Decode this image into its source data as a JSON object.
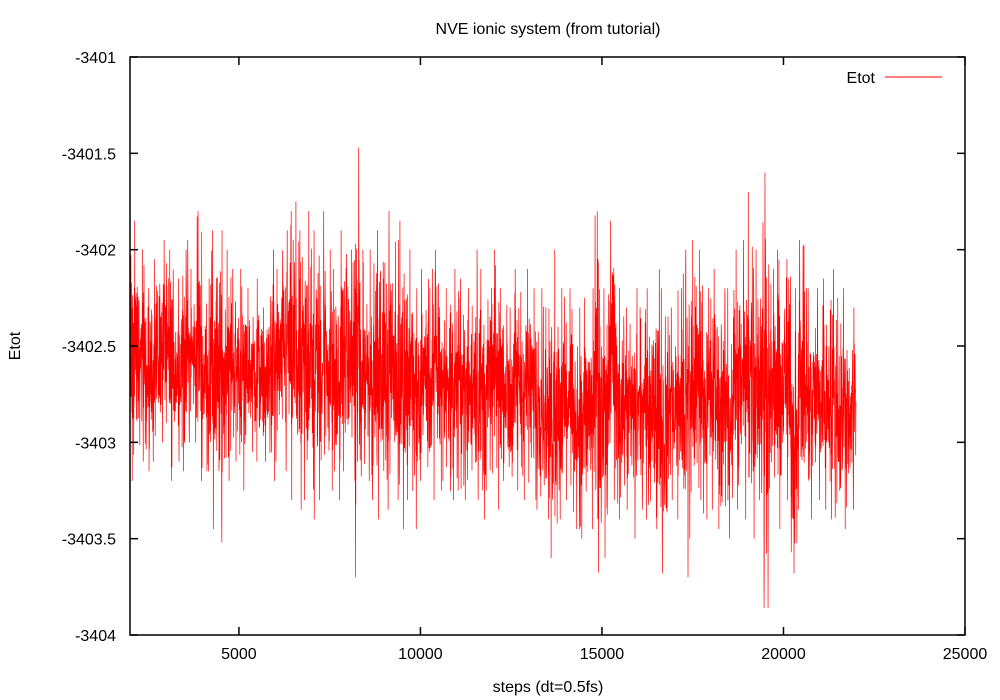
{
  "chart_data": {
    "type": "line",
    "title": "NVE ionic system (from tutorial)",
    "xlabel": "steps (dt=0.5fs)",
    "ylabel": "Etot",
    "xlim": [
      2000,
      25000
    ],
    "ylim": [
      -3404,
      -3401
    ],
    "xticks": [
      5000,
      10000,
      15000,
      20000,
      25000
    ],
    "xtick_labels": [
      "5000",
      "10000",
      "15000",
      "20000",
      "25000"
    ],
    "yticks": [
      -3401,
      -3401.5,
      -3402,
      -3402.5,
      -3403,
      -3403.5,
      -3404
    ],
    "ytick_labels": [
      "-3401",
      "-3401.5",
      "-3402",
      "-3402.5",
      "-3403",
      "-3403.5",
      "-3404"
    ],
    "legend": {
      "position": "top-right",
      "entries": [
        "Etot"
      ]
    },
    "grid": false,
    "series": [
      {
        "name": "Etot",
        "color": "#ff0000",
        "representation": "per-bin envelope (max/min) of dense noisy series",
        "bin_start": [
          2000,
          2200,
          2400,
          2600,
          2800,
          3000,
          3200,
          3400,
          3600,
          3800,
          4000,
          4200,
          4400,
          4600,
          4800,
          5000,
          5200,
          5400,
          5600,
          5800,
          6000,
          6200,
          6400,
          6600,
          6800,
          7000,
          7200,
          7400,
          7600,
          7800,
          8000,
          8200,
          8400,
          8600,
          8800,
          9000,
          9200,
          9400,
          9600,
          9800,
          10000,
          10200,
          10400,
          10600,
          10800,
          11000,
          11200,
          11400,
          11600,
          11800,
          12000,
          12200,
          12400,
          12600,
          12800,
          13000,
          13200,
          13400,
          13600,
          13800,
          14000,
          14200,
          14400,
          14600,
          14800,
          15000,
          15200,
          15400,
          15600,
          15800,
          16000,
          16200,
          16400,
          16600,
          16800,
          17000,
          17200,
          17400,
          17600,
          17800,
          18000,
          18200,
          18400,
          18600,
          18800,
          19000,
          19200,
          19400,
          19600,
          19800,
          20000,
          20200,
          20400,
          20600,
          20800,
          21000,
          21200,
          21400,
          21600,
          21800
        ],
        "bin_width": 200,
        "max": [
          -3401.85,
          -3402.0,
          -3402.2,
          -3402.05,
          -3401.95,
          -3402.0,
          -3402.15,
          -3401.95,
          -3402.1,
          -3401.8,
          -3402.15,
          -3401.9,
          -3401.9,
          -3402.0,
          -3402.1,
          -3402.1,
          -3402.2,
          -3402.15,
          -3402.3,
          -3402.0,
          -3402.1,
          -3401.9,
          -3401.75,
          -3401.9,
          -3401.8,
          -3401.9,
          -3401.8,
          -3402.0,
          -3402.1,
          -3401.9,
          -3402.0,
          -3401.47,
          -3402.0,
          -3402.0,
          -3401.9,
          -3401.8,
          -3401.95,
          -3401.85,
          -3402.0,
          -3402.2,
          -3402.1,
          -3402.1,
          -3402.0,
          -3402.2,
          -3402.1,
          -3402.15,
          -3402.2,
          -3402.0,
          -3402.1,
          -3402.2,
          -3402.0,
          -3402.2,
          -3402.3,
          -3402.1,
          -3402.1,
          -3402.2,
          -3402.2,
          -3402.3,
          -3402.0,
          -3402.2,
          -3402.2,
          -3402.3,
          -3402.25,
          -3402.2,
          -3401.8,
          -3402.2,
          -3401.85,
          -3402.2,
          -3402.3,
          -3402.2,
          -3402.3,
          -3402.2,
          -3402.1,
          -3402.2,
          -3402.3,
          -3402.2,
          -3402.0,
          -3401.95,
          -3402.0,
          -3402.2,
          -3402.1,
          -3402.2,
          -3402.2,
          -3402.0,
          -3401.95,
          -3401.7,
          -3402.0,
          -3401.6,
          -3402.1,
          -3402.0,
          -3402.05,
          -3402.2,
          -3401.95,
          -3402.2,
          -3402.2,
          -3402.15,
          -3402.1,
          -3402.25,
          -3402.2,
          -3402.3
        ],
        "min": [
          -3403.2,
          -3403.1,
          -3403.15,
          -3403.1,
          -3403.0,
          -3403.2,
          -3403.1,
          -3403.15,
          -3403.0,
          -3403.2,
          -3403.15,
          -3403.45,
          -3403.52,
          -3403.2,
          -3403.1,
          -3403.25,
          -3403.05,
          -3403.1,
          -3403.1,
          -3403.2,
          -3403.1,
          -3403.15,
          -3403.3,
          -3403.35,
          -3403.3,
          -3403.4,
          -3403.3,
          -3403.25,
          -3403.3,
          -3403.15,
          -3403.2,
          -3403.7,
          -3403.2,
          -3403.3,
          -3403.4,
          -3403.35,
          -3403.3,
          -3403.45,
          -3403.3,
          -3403.45,
          -3403.2,
          -3403.3,
          -3403.25,
          -3403.2,
          -3403.3,
          -3403.25,
          -3403.3,
          -3403.3,
          -3403.4,
          -3403.25,
          -3403.35,
          -3403.2,
          -3403.3,
          -3403.25,
          -3403.3,
          -3403.3,
          -3403.35,
          -3403.4,
          -3403.6,
          -3403.4,
          -3403.3,
          -3403.45,
          -3403.5,
          -3403.45,
          -3403.9,
          -3403.6,
          -3403.3,
          -3403.4,
          -3403.35,
          -3403.5,
          -3403.35,
          -3403.4,
          -3403.45,
          -3403.68,
          -3403.3,
          -3403.4,
          -3403.7,
          -3403.5,
          -3403.3,
          -3403.4,
          -3403.35,
          -3403.45,
          -3403.5,
          -3403.35,
          -3403.4,
          -3403.5,
          -3403.3,
          -3403.86,
          -3403.4,
          -3403.45,
          -3403.3,
          -3403.68,
          -3403.35,
          -3403.4,
          -3403.3,
          -3403.35,
          -3403.4,
          -3403.5,
          -3403.45,
          -3403.35
        ]
      }
    ]
  }
}
